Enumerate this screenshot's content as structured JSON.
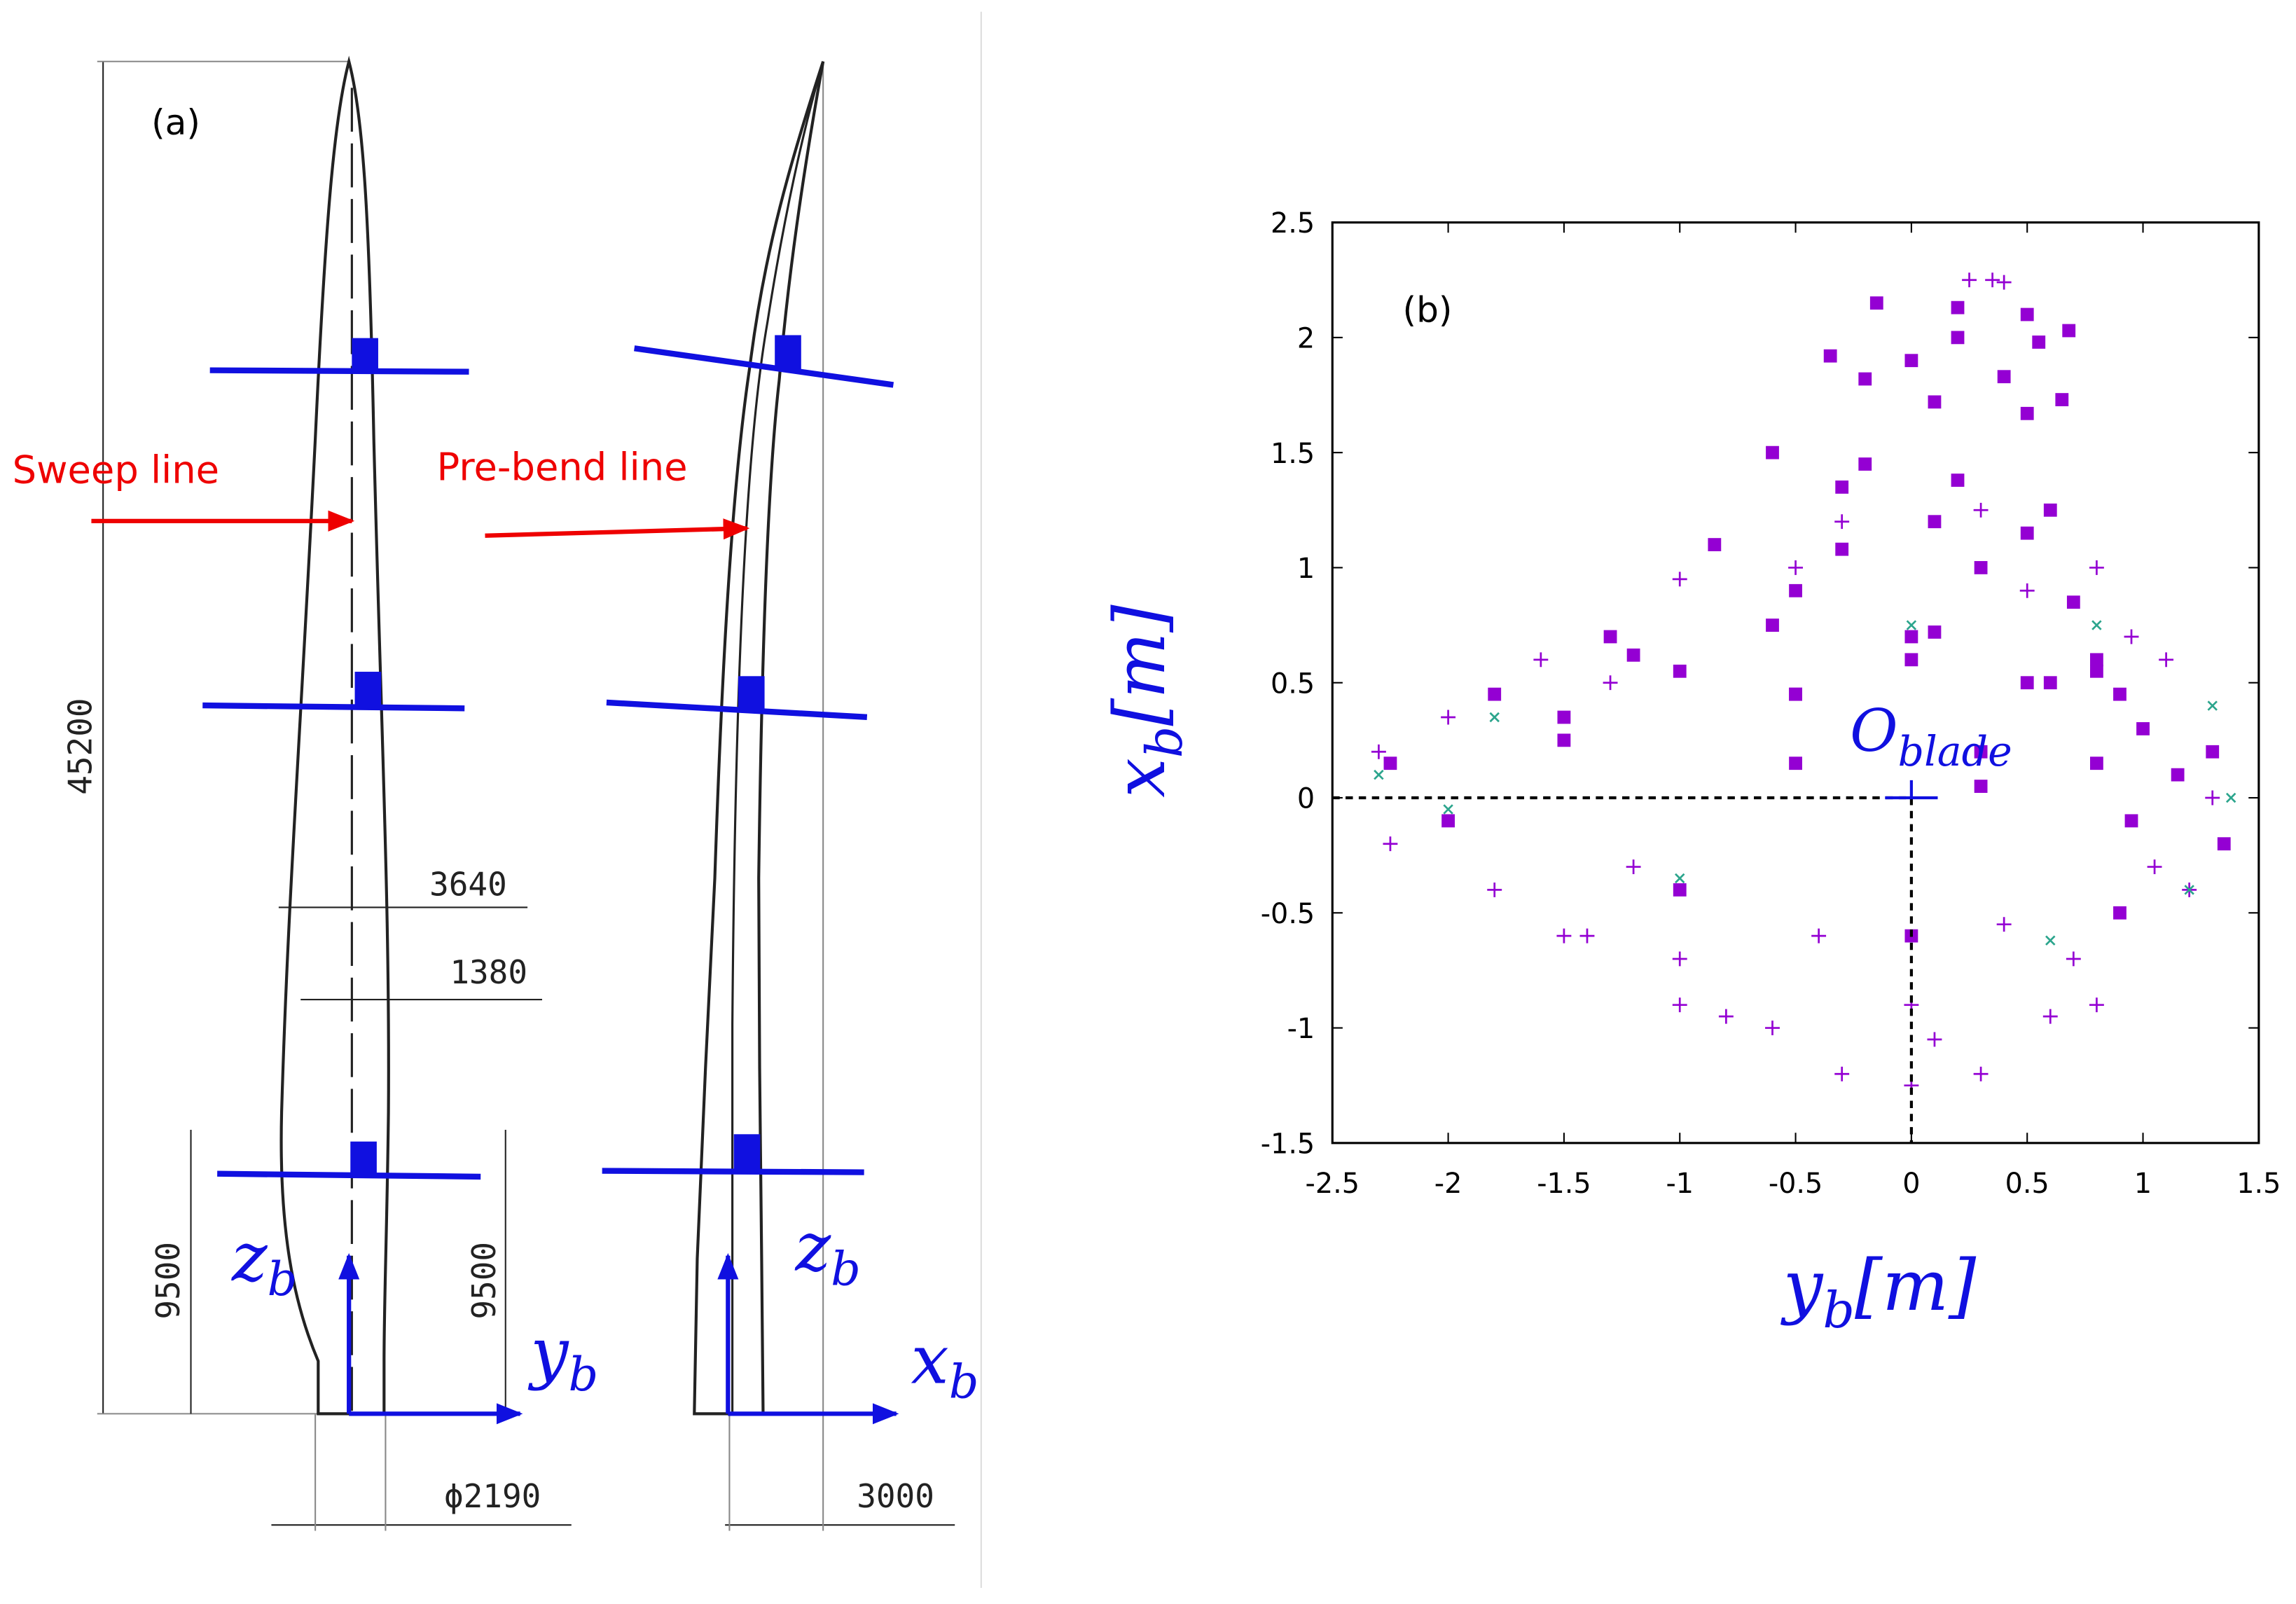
{
  "diagram": {
    "label": "(a)",
    "sweep_label": "Sweep line",
    "prebend_label": "Pre-bend line",
    "dimensions": {
      "length": "45200",
      "chord_max": "3640",
      "chord_pos": "1380",
      "root_left": "9500",
      "root_right": "9500",
      "diameter": "ϕ2190",
      "prebend": "3000"
    },
    "axes_left": {
      "vertical": [
        "z",
        "b"
      ],
      "horizontal": [
        "y",
        "b"
      ]
    },
    "axes_right": {
      "vertical": [
        "z",
        "b"
      ],
      "horizontal": [
        "x",
        "b"
      ]
    }
  },
  "chart_data": {
    "type": "scatter",
    "label": "(b)",
    "xlabel": [
      "y",
      "b",
      "[m]"
    ],
    "ylabel": [
      "x",
      "b",
      "[m]"
    ],
    "origin": {
      "label": [
        "O",
        "blade"
      ],
      "x": 0,
      "y": 0
    },
    "xlim": [
      -2.5,
      1.5
    ],
    "ylim": [
      -1.5,
      2.5
    ],
    "xticks": [
      -2.5,
      -2,
      -1.5,
      -1,
      -0.5,
      0,
      0.5,
      1,
      1.5
    ],
    "yticks": [
      -1.5,
      -1,
      -0.5,
      0,
      0.5,
      1,
      1.5,
      2,
      2.5
    ],
    "series": [
      {
        "color": "#9400d3",
        "marker": "plus",
        "x": [
          -2.3,
          -2.25,
          -1.5,
          -0.8,
          -0.3,
          0,
          0.3,
          0.8,
          1.2,
          1.3,
          1.1,
          0.8,
          0.3,
          -0.3,
          -1.0,
          -1.6,
          -2.0,
          -1.8,
          -1.0,
          0,
          0.7,
          1.05,
          -1.4,
          -1.2,
          -0.4,
          0.4,
          0.95,
          0.5,
          -0.5,
          -1.3,
          -1.0,
          -0.6,
          0.1,
          0.6,
          0.25,
          0.35,
          0.4
        ],
        "y": [
          0.2,
          -0.2,
          -0.6,
          -0.95,
          -1.2,
          -1.25,
          -1.2,
          -0.9,
          -0.4,
          0,
          0.6,
          1.0,
          1.25,
          1.2,
          0.95,
          0.6,
          0.35,
          -0.4,
          -0.7,
          -0.9,
          -0.7,
          -0.3,
          -0.6,
          -0.3,
          -0.6,
          -0.55,
          0.7,
          0.9,
          1.0,
          0.5,
          -0.9,
          -1.0,
          -1.05,
          -0.95,
          2.25,
          2.25,
          2.24
        ]
      },
      {
        "color": "#2ca58d",
        "marker": "cross",
        "x": [
          -2.3,
          -1.8,
          -1,
          0,
          0.8,
          1.3,
          1.38,
          1.2,
          0.6,
          0,
          -1,
          -2
        ],
        "y": [
          0.1,
          0.35,
          0.55,
          0.75,
          0.75,
          0.4,
          0,
          -0.4,
          -0.62,
          -0.6,
          -0.35,
          -0.05
        ]
      },
      {
        "color": "#9400d3",
        "marker": "square",
        "x": [
          -0.15,
          0.2,
          0.5,
          0.68,
          0.55,
          0.2,
          -0.35,
          0,
          0.4,
          0.65,
          0.5,
          0.1,
          -0.2,
          -0.6,
          -0.2,
          0.2,
          0.6,
          0.5,
          0.1,
          -0.3,
          -0.85,
          -0.3,
          0.3,
          0.7,
          0.8,
          0.5,
          0,
          -0.5,
          -1.3,
          -0.6,
          0.1,
          0.8,
          1.0,
          0.8,
          0.3,
          -0.5,
          -1.2,
          -1.8,
          -1,
          0,
          0.9,
          1.15,
          0.95,
          0.3,
          -0.5,
          -1.5,
          -2.25,
          -1.5,
          -0.5,
          0.6,
          1.3,
          1.35,
          0.9,
          0,
          -1,
          -2
        ],
        "y": [
          2.15,
          2.13,
          2.1,
          2.03,
          1.98,
          2.0,
          1.92,
          1.9,
          1.83,
          1.73,
          1.67,
          1.72,
          1.82,
          1.5,
          1.45,
          1.38,
          1.25,
          1.15,
          1.2,
          1.35,
          1.1,
          1.08,
          1.0,
          0.85,
          0.6,
          0.5,
          0.7,
          0.9,
          0.7,
          0.75,
          0.72,
          0.55,
          0.3,
          0.15,
          0.2,
          0.45,
          0.62,
          0.45,
          0.55,
          0.6,
          0.45,
          0.1,
          -0.1,
          0.05,
          0.15,
          0.25,
          0.15,
          0.35,
          0.45,
          0.5,
          0.2,
          -0.2,
          -0.5,
          -0.6,
          -0.4,
          -0.1
        ]
      }
    ]
  }
}
